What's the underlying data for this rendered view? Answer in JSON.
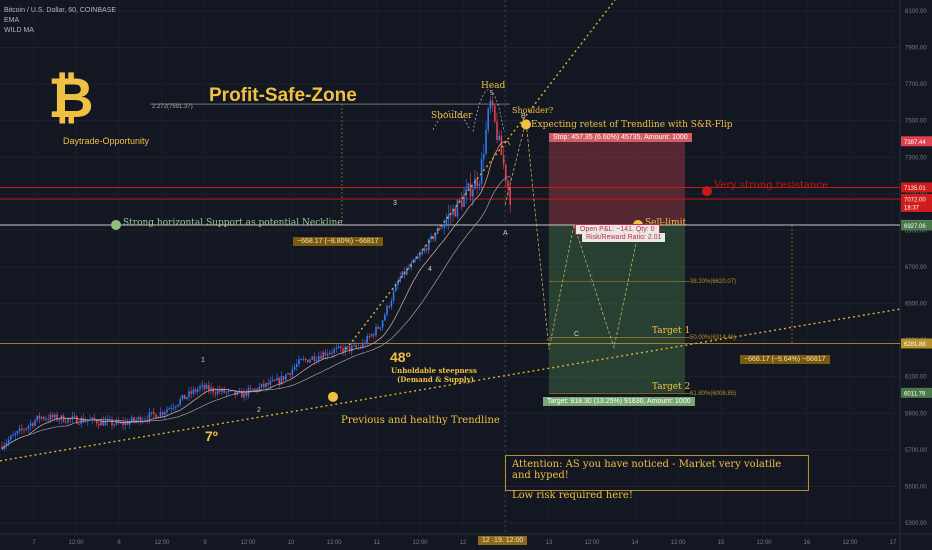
{
  "symbol": {
    "title": "Bitcoin / U.S. Dollar, 60, COINBASE",
    "ind1": "EMA",
    "ind2": "WILD MA"
  },
  "colors": {
    "bg": "#131722",
    "bull": "#3179f5",
    "bear": "#e04050",
    "gold": "#f0c043",
    "red": "#d01c1c",
    "green": "#4a7a4a"
  },
  "annotations": {
    "profit_zone": "Profit-Safe-Zone",
    "fib_top": "2.272(7591.37)",
    "daytrade": "Daytrade-Opportunity",
    "head": "Head",
    "head_n": "5",
    "shoulder_left": "Shoulder",
    "shoulder_right": "Shoulder?",
    "retest": "Expecting retest of Trendline with S&R-Flip",
    "resistance": "Very strong resistance",
    "support": "Strong horizontal Support as potential Neckline",
    "sell_limit": "Sell-limit",
    "steep_deg": "48º",
    "steep_1": "Unholdable steepness",
    "steep_2": "(Demand & Supply)",
    "prev_trend": "Previous and healthy Trendline",
    "deg7": "7º",
    "wave1": "1",
    "wave2": "2",
    "wave3": "3",
    "wave4": "4",
    "waveB": "B",
    "waveA": "A",
    "waveC": "C",
    "target1": "Target 1",
    "target2": "Target 2",
    "fib_382": "38.20%(6620.07)",
    "fib_50": "50.00%(6314.46)",
    "fib_618": "61.80%(6008.85)",
    "attention_1": "Attention: AS you have noticed - Market very volatile and hyped!",
    "attention_2": "Low risk required here!"
  },
  "badges": {
    "measure_left": "−668.17 (−8.80%) −66817",
    "measure_right": "−668.17 (−9.64%) −66817",
    "stop": "Stop: 457.35 (6.60%) 45735, Amount: 1000",
    "pnl": "Open P&L: −141.    Qty: 0",
    "rr": "Risk/Reward Ratio: 2.01",
    "target": "Target: 918.30 (13.25%) 91830, Amount: 1000",
    "cursor_time": "12 ·19.  12:00"
  },
  "chart_data": {
    "type": "candlestick",
    "title": "",
    "y_ticks": [
      8100,
      7900,
      7700,
      7500,
      7300,
      7100,
      6900,
      6700,
      6500,
      6300,
      6100,
      5900,
      5700,
      5500,
      5300
    ],
    "ylim": [
      5240,
      8160
    ],
    "x_ticks": [
      "7",
      "12:00",
      "8",
      "12:00",
      "9",
      "12:00",
      "10",
      "12:00",
      "11",
      "12:00",
      "12",
      "12:00",
      "13",
      "12:00",
      "14",
      "12:00",
      "15",
      "12:00",
      "16",
      "12:00",
      "17"
    ],
    "price_labels": [
      {
        "value": 7387.44,
        "text": "7387.44",
        "color": "#e04050"
      },
      {
        "value": 7135.01,
        "text": "7135.01",
        "color": "#d01c1c"
      },
      {
        "value": 7072.0,
        "text": "7072.00",
        "color": "#d01c1c"
      },
      {
        "value": 7028,
        "text": "18:37",
        "color": "#d01c1c"
      },
      {
        "value": 6930.09,
        "text": "6930.09",
        "color": "#787b86"
      },
      {
        "value": 6927.06,
        "text": "6927.06",
        "color": "#4a7a4a"
      },
      {
        "value": 6281.88,
        "text": "6281.88",
        "color": "#b8902a"
      },
      {
        "value": 6011.79,
        "text": "6011.79",
        "color": "#4a7a4a"
      }
    ],
    "levels": {
      "resistance": 7135,
      "resistance2": 7072,
      "neckline": 6930,
      "fib_top": 7591,
      "fib_382": 6620,
      "fib_50": 6314,
      "fib_618": 6008,
      "support_h": 6282
    },
    "position": {
      "entry": 6930,
      "stop": 7387,
      "target": 6012
    }
  }
}
